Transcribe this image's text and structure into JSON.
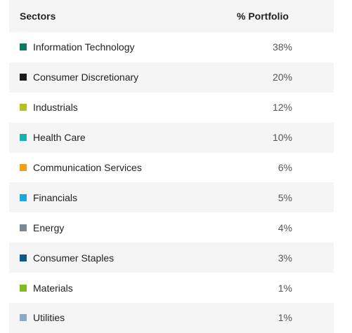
{
  "table": {
    "header": [
      "Sectors",
      "% Portfolio"
    ],
    "rows": [
      {
        "name": "Information Technology",
        "value": "38%",
        "color": "#0b7a5c"
      },
      {
        "name": "Consumer Discretionary",
        "value": "20%",
        "color": "#1b1b1b"
      },
      {
        "name": "Industrials",
        "value": "12%",
        "color": "#b3c21d"
      },
      {
        "name": "Health Care",
        "value": "10%",
        "color": "#16b2b3"
      },
      {
        "name": "Communication Services",
        "value": "6%",
        "color": "#f5a010"
      },
      {
        "name": "Financials",
        "value": "5%",
        "color": "#1aa6e0"
      },
      {
        "name": "Energy",
        "value": "4%",
        "color": "#7b8791"
      },
      {
        "name": "Consumer Staples",
        "value": "3%",
        "color": "#0f5a8a"
      },
      {
        "name": "Materials",
        "value": "1%",
        "color": "#7dbd1f"
      },
      {
        "name": "Utilities",
        "value": "1%",
        "color": "#8aaac9"
      }
    ]
  }
}
